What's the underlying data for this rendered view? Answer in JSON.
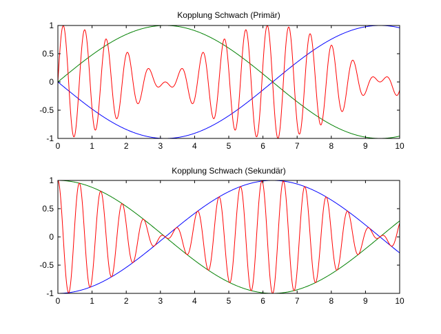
{
  "chart_data": [
    {
      "type": "line",
      "title": "Kopplung Schwach (Primär)",
      "xlabel": "",
      "ylabel": "",
      "xlim": [
        0,
        10
      ],
      "ylim": [
        -1,
        1
      ],
      "xticks": [
        "0",
        "1",
        "2",
        "3",
        "4",
        "5",
        "6",
        "7",
        "8",
        "9",
        "10"
      ],
      "yticks": [
        "1",
        "0.5",
        "0",
        "-0.5",
        "-1"
      ],
      "grid": false,
      "legend": "none",
      "series": [
        {
          "color": "#ff0000",
          "function": "cos(0.5*x)*sin(10*x)",
          "x_range": [
            0,
            10
          ]
        },
        {
          "color": "#008000",
          "x": [
            0,
            1,
            2,
            3,
            3.14,
            4,
            5,
            6,
            6.28,
            7,
            8,
            9,
            10
          ],
          "y": [
            0,
            0.48,
            0.84,
            1.0,
            1.0,
            0.91,
            0.6,
            0.14,
            0,
            -0.35,
            -0.76,
            -0.98,
            -0.96
          ]
        },
        {
          "color": "#0000ff",
          "x": [
            0,
            1,
            2,
            3,
            3.14,
            4,
            5,
            6,
            6.28,
            7,
            8,
            9,
            10
          ],
          "y": [
            0,
            -0.48,
            -0.84,
            -1.0,
            -1.0,
            -0.91,
            -0.6,
            -0.14,
            0,
            0.35,
            0.76,
            0.98,
            0.96
          ]
        }
      ],
      "colors": {
        "carrier": "#ff0000",
        "upper_envelope": "#008000",
        "lower_envelope": "#0000ff"
      }
    },
    {
      "type": "line",
      "title": "Kopplung Schwach (Sekundär)",
      "xlabel": "",
      "ylabel": "",
      "xlim": [
        0,
        10
      ],
      "ylim": [
        -1,
        1
      ],
      "xticks": [
        "0",
        "1",
        "2",
        "3",
        "4",
        "5",
        "6",
        "7",
        "8",
        "9",
        "10"
      ],
      "yticks": [
        "1",
        "0.5",
        "0",
        "-0.5",
        "-1"
      ],
      "grid": false,
      "legend": "none",
      "series": [
        {
          "color": "#ff0000",
          "function": "cos(0.5*x)*cos(10*x)",
          "x_range": [
            0,
            10
          ]
        },
        {
          "color": "#008000",
          "x": [
            0,
            1,
            2,
            3,
            3.14,
            4,
            5,
            6,
            6.28,
            7,
            8,
            9,
            10
          ],
          "y": [
            1,
            0.88,
            0.54,
            0.07,
            0,
            -0.42,
            -0.8,
            -0.99,
            -1.0,
            -0.94,
            -0.65,
            -0.21,
            0.28
          ]
        },
        {
          "color": "#0000ff",
          "x": [
            0,
            1,
            2,
            3,
            3.14,
            4,
            5,
            6,
            6.28,
            7,
            8,
            9,
            10
          ],
          "y": [
            -1,
            -0.88,
            -0.54,
            -0.07,
            0,
            0.42,
            0.8,
            0.99,
            1.0,
            0.94,
            0.65,
            0.21,
            -0.28
          ]
        }
      ],
      "colors": {
        "carrier": "#ff0000",
        "upper_envelope": "#008000",
        "lower_envelope": "#0000ff"
      }
    }
  ]
}
